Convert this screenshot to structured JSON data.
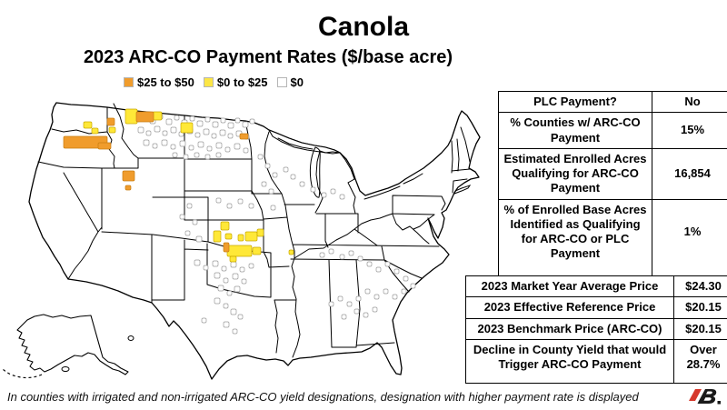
{
  "title": "Canola",
  "subtitle": "2023 ARC-CO Payment Rates ($/base acre)",
  "legend": {
    "items": [
      {
        "label": "$25 to $50",
        "color": "#F09C2C"
      },
      {
        "label": "$0 to $25",
        "color": "#FCE646"
      },
      {
        "label": "$0",
        "color": "#FFFFFF"
      }
    ]
  },
  "summary_table": {
    "rows": [
      {
        "label": "PLC Payment?",
        "value": "No"
      },
      {
        "label": "% Counties w/ ARC-CO Payment",
        "value": "15%"
      },
      {
        "label": "Estimated Enrolled Acres Qualifying for ARC-CO Payment",
        "value": "16,854"
      },
      {
        "label": "% of Enrolled Base Acres Identified as Qualifying for ARC-CO or PLC Payment",
        "value": "1%"
      }
    ]
  },
  "price_table": {
    "rows": [
      {
        "label": "2023 Market Year Average Price",
        "value": "$24.30"
      },
      {
        "label": "2023 Effective Reference Price",
        "value": "$20.15"
      },
      {
        "label": "2023 Benchmark Price (ARC-CO)",
        "value": "$20.15"
      },
      {
        "label": "Decline in County Yield that would Trigger ARC-CO Payment",
        "value": "Over 28.7%"
      }
    ]
  },
  "footnote": "In counties with irrigated and non-irrigated ARC-CO yield designations, designation with higher payment rate is displayed",
  "logo": {
    "alt": "FB.",
    "red": "#D6382C",
    "black": "#1a1a1a"
  },
  "chart_data": [
    {
      "type": "heatmap",
      "title": "2023 ARC-CO Payment Rates ($/base acre) by U.S. county — Canola",
      "legend_position": "top",
      "buckets": [
        {
          "range": "$25 to $50",
          "color": "#F09C2C",
          "regions": [
            "south-central Washington",
            "north-central Montana",
            "southeast Idaho",
            "north-central North Dakota",
            "west-central Kansas (one county)"
          ]
        },
        {
          "range": "$0 to $25",
          "color": "#FCE646",
          "regions": [
            "central Washington",
            "northern Montana",
            "western Kansas / eastern Colorado cluster"
          ]
        },
        {
          "range": "$0",
          "color": "#FFFFFF",
          "regions": [
            "scattered counties in MT, ND, MN, WI, MI, CO, KS, OK, TX, TN, AL, GA, SC, NC"
          ]
        }
      ]
    },
    {
      "type": "table",
      "rows": [
        [
          "PLC Payment?",
          "No"
        ],
        [
          "% Counties w/ ARC-CO Payment",
          "15%"
        ],
        [
          "Estimated Enrolled Acres Qualifying for ARC-CO Payment",
          "16,854"
        ],
        [
          "% of Enrolled Base Acres Identified as Qualifying for ARC-CO or PLC Payment",
          "1%"
        ]
      ]
    },
    {
      "type": "table",
      "rows": [
        [
          "2023 Market Year Average Price",
          "$24.30"
        ],
        [
          "2023 Effective Reference Price",
          "$20.15"
        ],
        [
          "2023 Benchmark Price (ARC-CO)",
          "$20.15"
        ],
        [
          "Decline in County Yield that would Trigger ARC-CO Payment",
          "Over 28.7%"
        ]
      ]
    }
  ],
  "map": {
    "colors": {
      "orange": "#F09C2C",
      "yellow": "#FFE838",
      "zero_fill": "#FFFFFF",
      "county_stroke": "#9a9a9a",
      "state_stroke": "#000000"
    },
    "orange_counties": [
      [
        70,
        50,
        48,
        13
      ],
      [
        108,
        57,
        14,
        7
      ],
      [
        118,
        30,
        8,
        8
      ],
      [
        150,
        23,
        19,
        11
      ],
      [
        135,
        88,
        13,
        11
      ],
      [
        138,
        104,
        6,
        5
      ],
      [
        264,
        47,
        9,
        6
      ],
      [
        246,
        167,
        6,
        10
      ]
    ],
    "yellow_counties": [
      [
        92,
        34,
        9,
        7
      ],
      [
        101,
        41,
        7,
        6
      ],
      [
        120,
        40,
        7,
        6
      ],
      [
        138,
        20,
        13,
        16
      ],
      [
        168,
        23,
        10,
        9
      ],
      [
        199,
        35,
        13,
        11
      ],
      [
        243,
        144,
        9,
        9
      ],
      [
        235,
        154,
        8,
        12
      ],
      [
        248,
        157,
        7,
        6
      ],
      [
        262,
        158,
        6,
        7
      ],
      [
        270,
        155,
        13,
        10
      ],
      [
        283,
        152,
        7,
        8
      ],
      [
        250,
        170,
        27,
        12
      ],
      [
        278,
        172,
        9,
        8
      ],
      [
        253,
        182,
        7,
        6
      ],
      [
        318,
        175,
        5,
        5
      ]
    ],
    "zero_counties": [
      [
        148,
        28,
        6
      ],
      [
        157,
        25,
        5
      ],
      [
        165,
        30,
        6
      ],
      [
        174,
        26,
        5
      ],
      [
        183,
        31,
        6
      ],
      [
        192,
        27,
        5
      ],
      [
        200,
        32,
        6
      ],
      [
        209,
        28,
        5
      ],
      [
        217,
        33,
        6
      ],
      [
        226,
        29,
        5
      ],
      [
        234,
        34,
        6
      ],
      [
        243,
        30,
        5
      ],
      [
        251,
        35,
        6
      ],
      [
        259,
        30,
        5
      ],
      [
        267,
        34,
        6
      ],
      [
        275,
        31,
        5
      ],
      [
        152,
        40,
        6
      ],
      [
        161,
        44,
        5
      ],
      [
        170,
        39,
        6
      ],
      [
        179,
        44,
        5
      ],
      [
        188,
        40,
        6
      ],
      [
        197,
        45,
        5
      ],
      [
        206,
        41,
        6
      ],
      [
        215,
        46,
        5
      ],
      [
        224,
        42,
        6
      ],
      [
        233,
        47,
        5
      ],
      [
        242,
        43,
        6
      ],
      [
        251,
        47,
        5
      ],
      [
        260,
        44,
        6
      ],
      [
        269,
        48,
        5
      ],
      [
        158,
        54,
        6
      ],
      [
        168,
        58,
        5
      ],
      [
        178,
        54,
        6
      ],
      [
        188,
        59,
        5
      ],
      [
        198,
        55,
        6
      ],
      [
        208,
        60,
        5
      ],
      [
        218,
        56,
        6
      ],
      [
        228,
        61,
        5
      ],
      [
        238,
        57,
        6
      ],
      [
        248,
        62,
        5
      ],
      [
        258,
        58,
        6
      ],
      [
        268,
        63,
        5
      ],
      [
        190,
        68,
        5
      ],
      [
        202,
        70,
        5
      ],
      [
        214,
        68,
        5
      ],
      [
        226,
        70,
        5
      ],
      [
        238,
        68,
        5
      ],
      [
        284,
        70,
        5
      ],
      [
        292,
        80,
        5
      ],
      [
        300,
        90,
        5
      ],
      [
        288,
        100,
        5
      ],
      [
        296,
        108,
        5
      ],
      [
        312,
        84,
        5
      ],
      [
        320,
        92,
        5
      ],
      [
        330,
        100,
        5
      ],
      [
        342,
        106,
        5
      ],
      [
        354,
        112,
        5
      ],
      [
        364,
        108,
        5
      ],
      [
        374,
        114,
        5
      ],
      [
        238,
        118,
        5
      ],
      [
        250,
        124,
        5
      ],
      [
        262,
        119,
        5
      ],
      [
        274,
        124,
        5
      ],
      [
        298,
        126,
        5
      ],
      [
        206,
        124,
        5
      ],
      [
        198,
        136,
        5
      ],
      [
        212,
        142,
        5
      ],
      [
        204,
        154,
        5
      ],
      [
        216,
        160,
        6
      ],
      [
        214,
        186,
        6
      ],
      [
        224,
        192,
        5
      ],
      [
        234,
        187,
        6
      ],
      [
        244,
        193,
        5
      ],
      [
        254,
        188,
        6
      ],
      [
        264,
        194,
        5
      ],
      [
        274,
        190,
        5
      ],
      [
        236,
        200,
        6
      ],
      [
        246,
        206,
        5
      ],
      [
        256,
        201,
        6
      ],
      [
        266,
        207,
        5
      ],
      [
        240,
        214,
        6
      ],
      [
        250,
        220,
        5
      ],
      [
        258,
        215,
        6
      ],
      [
        236,
        228,
        6
      ],
      [
        246,
        234,
        5
      ],
      [
        254,
        240,
        6
      ],
      [
        262,
        246,
        5
      ],
      [
        246,
        254,
        6
      ],
      [
        222,
        250,
        5
      ],
      [
        256,
        262,
        5
      ],
      [
        352,
        178,
        5
      ],
      [
        362,
        174,
        5
      ],
      [
        374,
        180,
        5
      ],
      [
        384,
        176,
        5
      ],
      [
        394,
        182,
        5
      ],
      [
        404,
        188,
        5
      ],
      [
        414,
        194,
        5
      ],
      [
        424,
        188,
        5
      ],
      [
        434,
        196,
        5
      ],
      [
        444,
        204,
        5
      ],
      [
        452,
        212,
        5
      ],
      [
        442,
        218,
        5
      ],
      [
        432,
        224,
        5
      ],
      [
        422,
        218,
        5
      ],
      [
        412,
        224,
        5
      ],
      [
        402,
        218,
        5
      ],
      [
        392,
        226,
        5
      ],
      [
        382,
        232,
        5
      ],
      [
        372,
        226,
        5
      ],
      [
        362,
        232,
        5
      ],
      [
        390,
        240,
        5
      ],
      [
        400,
        244,
        5
      ],
      [
        410,
        238,
        5
      ],
      [
        376,
        246,
        5
      ]
    ]
  }
}
